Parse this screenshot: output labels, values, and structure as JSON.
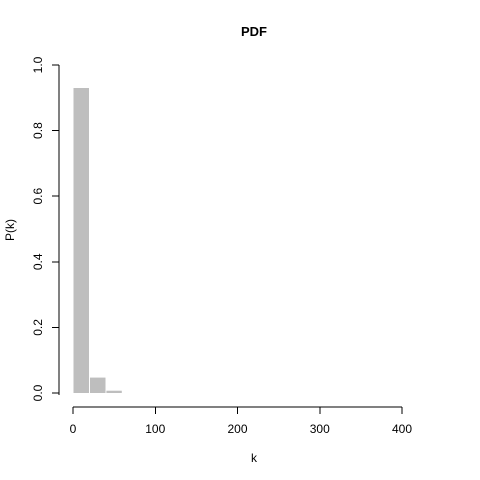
{
  "chart_data": {
    "type": "bar",
    "title": "PDF",
    "xlabel": "k",
    "ylabel": "P(k)",
    "xlim": [
      0,
      455
    ],
    "ylim": [
      0,
      1.0
    ],
    "xticks": [
      0,
      100,
      200,
      300,
      400
    ],
    "yticks": [
      0.0,
      0.2,
      0.4,
      0.6,
      0.8,
      1.0
    ],
    "xtick_labels": [
      "0",
      "100",
      "200",
      "300",
      "400"
    ],
    "ytick_labels": [
      "0.0",
      "0.2",
      "0.4",
      "0.6",
      "0.8",
      "1.0"
    ],
    "bin_width": 20,
    "bins": [
      {
        "start": 0,
        "end": 20,
        "value": 0.93
      },
      {
        "start": 20,
        "end": 40,
        "value": 0.047
      },
      {
        "start": 40,
        "end": 60,
        "value": 0.007
      }
    ],
    "bar_color": "#bebebe",
    "grid": false
  }
}
